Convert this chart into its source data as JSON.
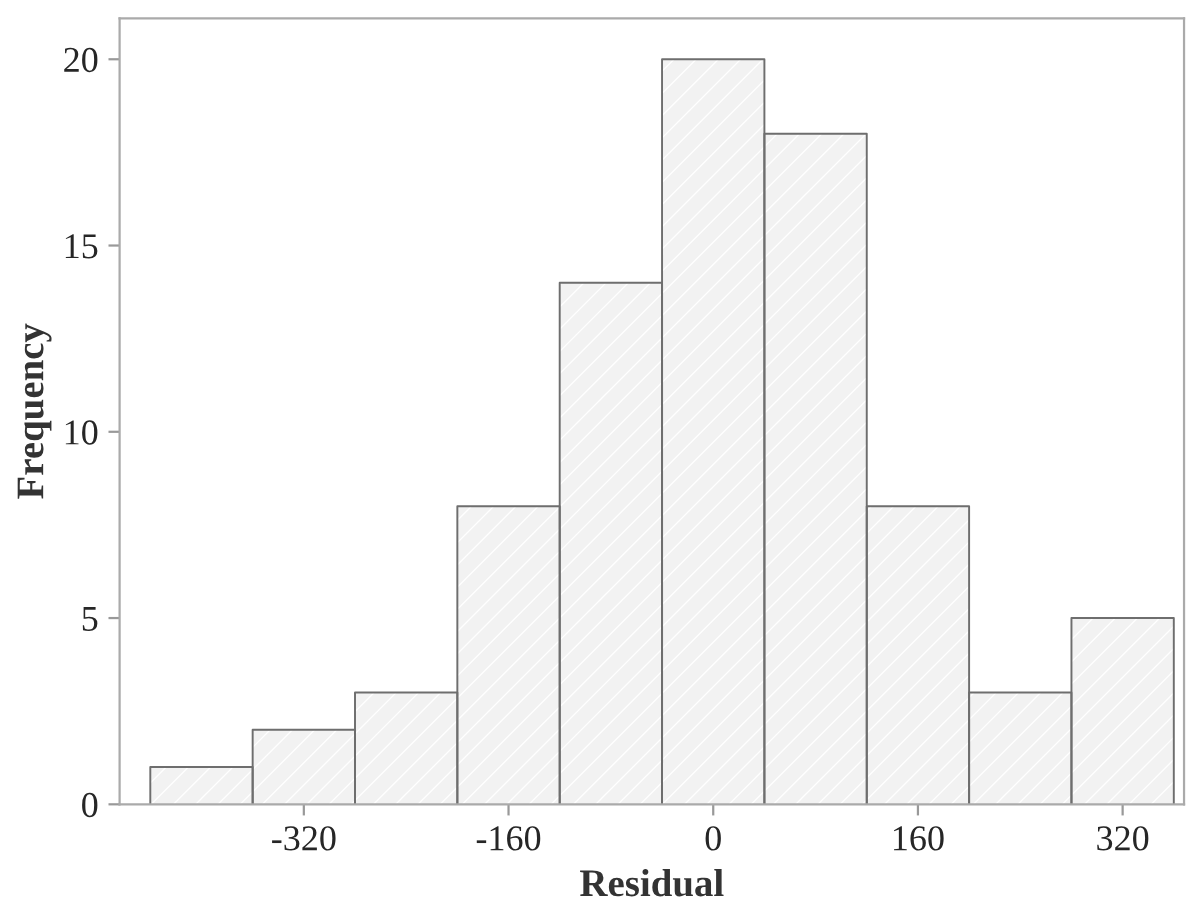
{
  "chart_data": {
    "type": "histogram",
    "xlabel": "Residual",
    "ylabel": "Frequency",
    "bins": [
      -440,
      -360,
      -280,
      -200,
      -120,
      -40,
      40,
      120,
      200,
      280,
      360
    ],
    "values": [
      1,
      2,
      3,
      8,
      14,
      20,
      18,
      8,
      3,
      5
    ],
    "color": "#f2f2f2",
    "xlim": [
      -464,
      368
    ],
    "xticks": [
      -320,
      -160,
      0,
      160,
      320
    ],
    "ylim": [
      0,
      21.1
    ],
    "yticks": [
      0,
      5,
      10,
      15,
      20
    ],
    "grid": false
  }
}
